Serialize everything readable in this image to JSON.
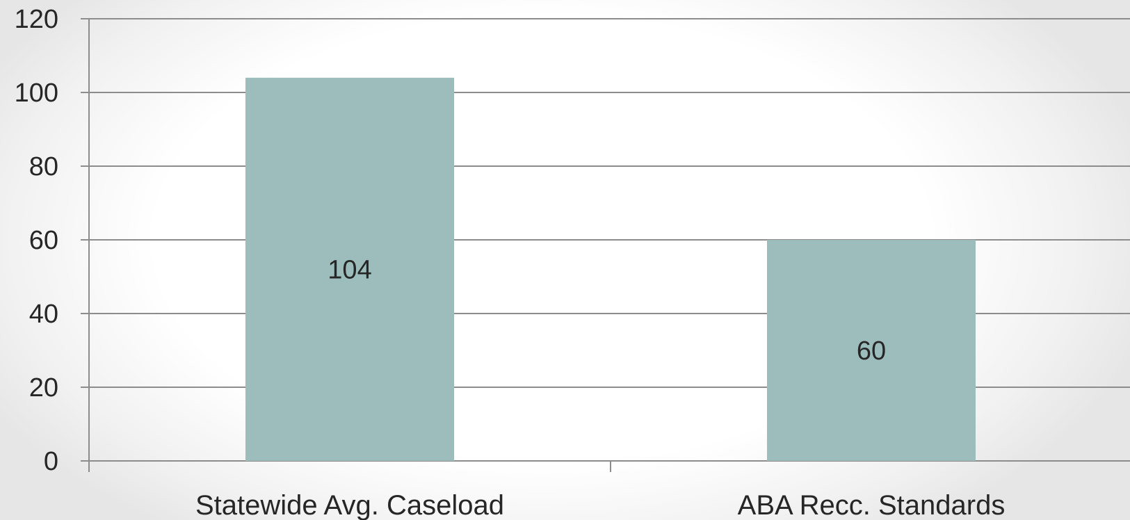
{
  "chart_data": {
    "type": "bar",
    "title": "",
    "xlabel": "",
    "ylabel": "",
    "categories": [
      "Statewide Avg. Caseload",
      "ABA Recc. Standards"
    ],
    "values": [
      104,
      60
    ],
    "data_labels": [
      "104",
      "60"
    ],
    "ylim": [
      0,
      120
    ],
    "yticks": [
      0,
      20,
      40,
      60,
      80,
      100,
      120
    ],
    "ytick_labels": [
      "0",
      "20",
      "40",
      "60",
      "80",
      "100",
      "120"
    ],
    "grid": true,
    "legend": "none",
    "colors": {
      "bar": "#9dbdbd",
      "gridline": "#8c8c8c",
      "axis": "#8c8c8c",
      "text": "#262626"
    }
  }
}
